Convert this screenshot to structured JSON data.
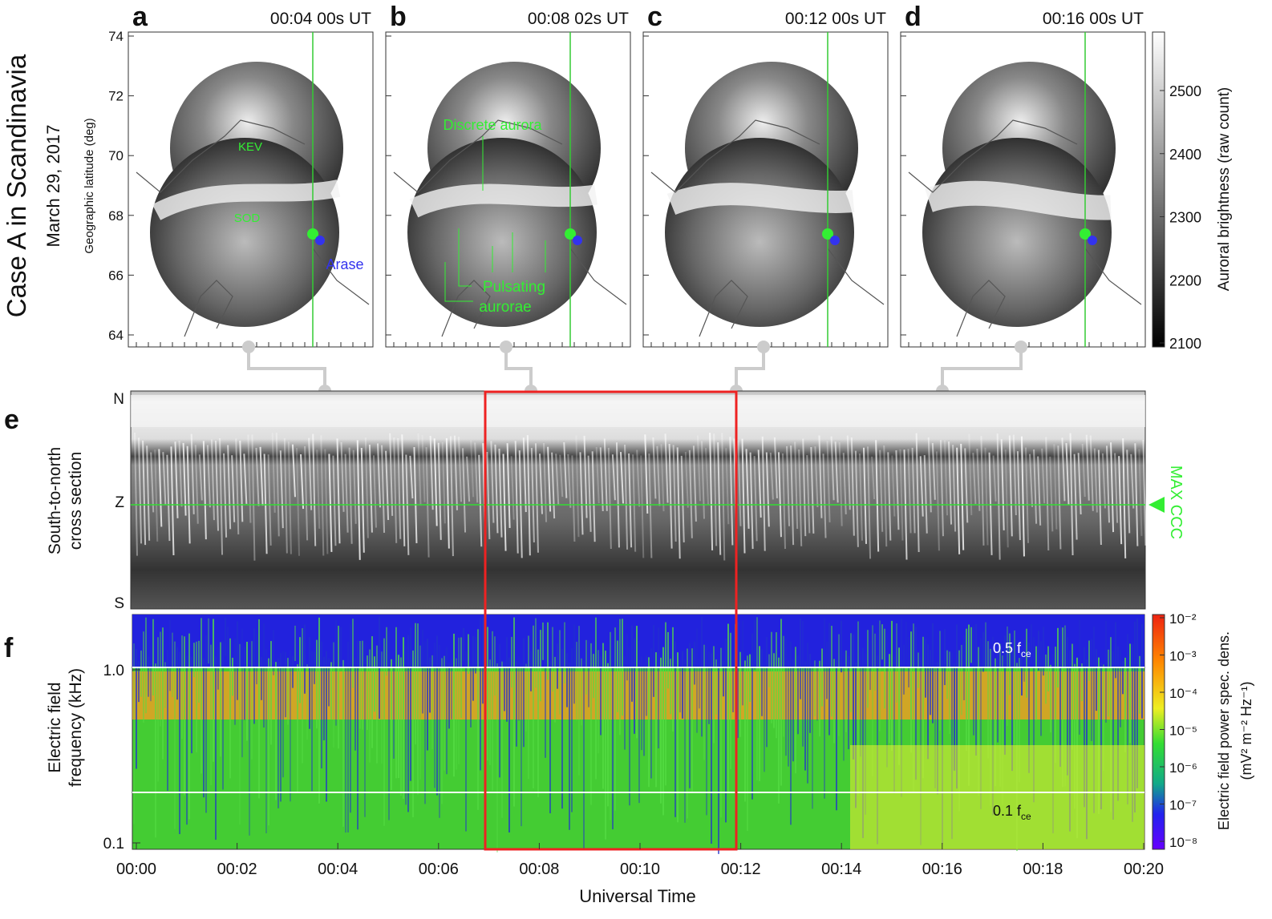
{
  "side_title": "Case A in Scandinavia",
  "date": "March 29, 2017",
  "panels": [
    {
      "letter": "a",
      "time": "00:04 00s UT"
    },
    {
      "letter": "b",
      "time": "00:08 02s UT"
    },
    {
      "letter": "c",
      "time": "00:12 00s UT"
    },
    {
      "letter": "d",
      "time": "00:16 00s UT"
    }
  ],
  "map_axis": {
    "label": "Geographic latitude (deg)",
    "ticks": [
      64,
      66,
      68,
      70,
      72,
      74
    ]
  },
  "map_labels": {
    "kev": "KEV",
    "sod": "SOD",
    "arase": "Arase",
    "discrete": "Discrete aurora",
    "pulsating_1": "Pulsating",
    "pulsating_2": "aurorae"
  },
  "colorbar_brightness": {
    "label": "Auroral brightness (raw count)",
    "ticks": [
      2100,
      2200,
      2300,
      2400,
      2500
    ]
  },
  "keogram": {
    "letter": "e",
    "label_1": "South-to-north",
    "label_2": "cross section",
    "ticks": [
      "N",
      "Z",
      "S"
    ],
    "marker": "MAX CCC"
  },
  "spectrogram": {
    "letter": "f",
    "label_1": "Electric field",
    "label_2": "frequency (kHz)",
    "ticks": [
      {
        "value": 1,
        "label": "1.0"
      },
      {
        "value": 0.1,
        "label": "0.1"
      }
    ],
    "lines": [
      {
        "text": "0.5 f",
        "sub": "ce"
      },
      {
        "text": "0.1 f",
        "sub": "ce"
      }
    ]
  },
  "colorbar_power": {
    "label_1": "Electric field power spec. dens.",
    "label_2": "(mV² m⁻² Hz⁻¹)",
    "ticks": [
      {
        "value": 0.01,
        "label": "10⁻²"
      },
      {
        "value": 0.001,
        "label": "10⁻³"
      },
      {
        "value": 0.0001,
        "label": "10⁻⁴"
      },
      {
        "value": 1e-05,
        "label": "10⁻⁵"
      },
      {
        "value": 1e-06,
        "label": "10⁻⁶"
      },
      {
        "value": 1e-07,
        "label": "10⁻⁷"
      },
      {
        "value": 1e-08,
        "label": "10⁻⁸"
      }
    ]
  },
  "x_axis": {
    "label": "Universal Time",
    "ticks": [
      "00:00",
      "00:02",
      "00:04",
      "00:06",
      "00:08",
      "00:10",
      "00:12",
      "00:14",
      "00:16",
      "00:18",
      "00:20"
    ]
  }
}
